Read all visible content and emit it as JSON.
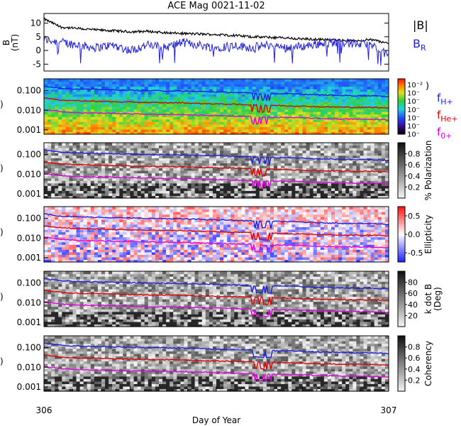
{
  "title": "ACE Mag 0021-11-02",
  "colors": {
    "b_total": "#000000",
    "b_r": "#2020e0",
    "f_h": "#1f1fe0",
    "f_he": "#e00000",
    "f_o": "#e000e0"
  },
  "chart_data": [
    {
      "type": "line",
      "panel": "magnetic-field",
      "ylabel": "B (nT)",
      "ylim": [
        -7.5,
        13.5
      ],
      "yticks": [
        -5,
        0,
        5,
        10
      ],
      "x": [
        306.0,
        306.05,
        306.1,
        306.15,
        306.2,
        306.25,
        306.3,
        306.35,
        306.4,
        306.45,
        306.5,
        306.55,
        306.6,
        306.65,
        306.7,
        306.75,
        306.8,
        306.85,
        306.9,
        306.95,
        307.0
      ],
      "series": [
        {
          "name": "|B|",
          "values": [
            11.5,
            8.5,
            8.0,
            7.5,
            7.2,
            6.8,
            7.0,
            6.5,
            6.2,
            6.0,
            5.8,
            5.5,
            5.0,
            4.8,
            4.6,
            4.2,
            4.0,
            3.8,
            3.5,
            4.0,
            2.5
          ]
        },
        {
          "name": "B_R",
          "values": [
            4,
            3,
            2,
            1,
            2,
            0,
            2,
            1,
            3,
            2,
            1,
            2,
            1,
            2,
            1,
            1.5,
            2.5,
            3,
            2.5,
            2,
            -2
          ]
        }
      ]
    },
    {
      "type": "heatmap",
      "panel": "power-spectrum",
      "ylim": [
        0.0006,
        0.4
      ],
      "yscale": "log",
      "ytick_labels": [
        "0.001",
        "0.010",
        "0.100"
      ],
      "colorbar_labels": [
        "10⁻²",
        "10⁻",
        "10⁻",
        "10⁻",
        "10⁻",
        "10⁻",
        "10⁻"
      ],
      "colorbar_partial_label": ")"
    },
    {
      "type": "heatmap",
      "panel": "polarization",
      "ylim": [
        0.0006,
        0.4
      ],
      "yscale": "log",
      "ytick_labels": [
        "0.001",
        "0.010",
        "0.100"
      ],
      "colorbar_label": "% Polarization",
      "colorbar_ticks": [
        "0.2",
        "0.4",
        "0.6",
        "0.8"
      ]
    },
    {
      "type": "heatmap",
      "panel": "ellipticity",
      "ylim": [
        0.0006,
        0.4
      ],
      "yscale": "log",
      "ytick_labels": [
        "0.001",
        "0.010",
        "0.100"
      ],
      "colorbar_label": "Ellipticity",
      "colorbar_ticks": [
        "-0.5",
        "0.0",
        "0.5"
      ]
    },
    {
      "type": "heatmap",
      "panel": "k-dot-b",
      "ylim": [
        0.0006,
        0.4
      ],
      "yscale": "log",
      "ytick_labels": [
        "0.001",
        "0.010",
        "0.100"
      ],
      "colorbar_label": "k dot B (Deg)",
      "colorbar_label_lines": [
        "k dot B",
        "(Deg)"
      ],
      "colorbar_ticks": [
        "20",
        "40",
        "60",
        "80"
      ]
    },
    {
      "type": "heatmap",
      "panel": "coherency",
      "ylim": [
        0.0006,
        0.4
      ],
      "yscale": "log",
      "ytick_labels": [
        "0.001",
        "0.010",
        "0.100"
      ],
      "colorbar_label": "Coherency",
      "colorbar_ticks": [
        "0.2",
        "0.4",
        "0.6",
        "0.8"
      ],
      "xlabel": "Day of Year",
      "xlim": [
        306,
        307
      ],
      "xtick_labels": [
        "306",
        "307"
      ]
    }
  ],
  "gyro_lines": {
    "x": [
      306.0,
      306.05,
      306.1,
      306.15,
      306.2,
      306.25,
      306.3,
      306.35,
      306.4,
      306.45,
      306.5,
      306.55,
      306.6,
      306.65,
      306.7,
      306.75,
      306.8,
      306.85,
      306.9,
      306.95,
      307.0
    ],
    "series": [
      {
        "name": "f_H+",
        "values": [
          0.17,
          0.13,
          0.12,
          0.115,
          0.11,
          0.105,
          0.1,
          0.098,
          0.095,
          0.09,
          0.085,
          0.08,
          0.075,
          0.07,
          0.07,
          0.065,
          0.06,
          0.058,
          0.055,
          0.055,
          0.05
        ]
      },
      {
        "name": "f_He+",
        "values": [
          0.042,
          0.033,
          0.03,
          0.029,
          0.027,
          0.026,
          0.025,
          0.024,
          0.024,
          0.022,
          0.021,
          0.02,
          0.019,
          0.018,
          0.017,
          0.016,
          0.015,
          0.0145,
          0.014,
          0.014,
          0.013
        ]
      },
      {
        "name": "f_O+",
        "values": [
          0.011,
          0.0085,
          0.0075,
          0.0072,
          0.007,
          0.0066,
          0.0063,
          0.0061,
          0.006,
          0.0056,
          0.0053,
          0.005,
          0.0047,
          0.0044,
          0.0043,
          0.0041,
          0.0038,
          0.0036,
          0.0035,
          0.0034,
          0.0032
        ]
      }
    ]
  },
  "legend": {
    "b_total": "|B|",
    "b_r_main": "B",
    "b_r_sub": "R",
    "f_main": "f",
    "f_h_sub": "H+",
    "f_he_sub": "He+",
    "f_o_sub": "0+"
  },
  "axis": {
    "b_ylabel_main": "B",
    "b_ylabel_units": "(nT)",
    "freq_ylabel_fragment": ")",
    "xlabel": "Day of Year",
    "x_start": "306",
    "x_end": "307"
  }
}
